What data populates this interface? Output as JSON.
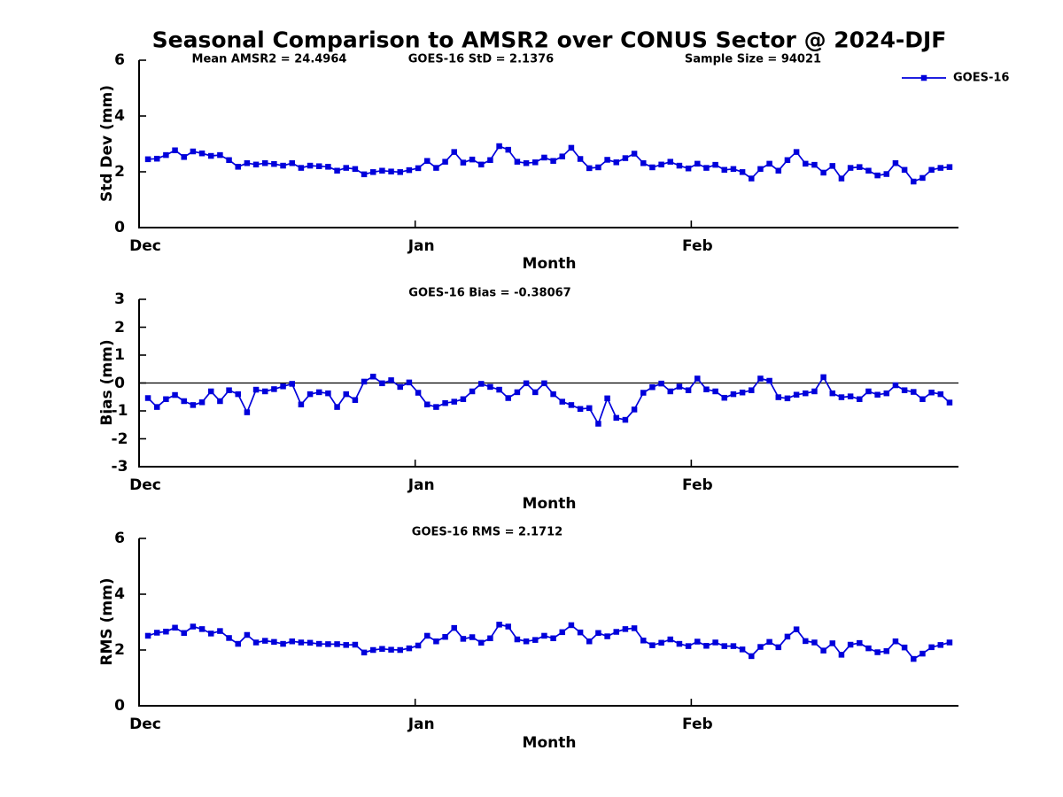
{
  "title": "Seasonal Comparison to AMSR2 over CONUS Sector @ 2024-DJF",
  "annotations": {
    "mean_amsr2": "Mean AMSR2 = 24.4964",
    "std": "GOES-16 StD = 2.1376",
    "sample_size": "Sample Size = 94021",
    "bias": "GOES-16 Bias = -0.38067",
    "rms": "GOES-16 RMS = 2.1712"
  },
  "legend": {
    "label": "GOES-16",
    "position": "top-right-outside"
  },
  "colors": {
    "series": "#0000DB",
    "axis": "#000000",
    "text": "#000000"
  },
  "chart_data": [
    {
      "type": "line",
      "panel": "std-dev",
      "ylabel": "Std Dev (mm)",
      "xlabel": "Month",
      "ylim": [
        0,
        6
      ],
      "yticks": [
        0,
        2,
        4,
        6
      ],
      "xlim": [
        0,
        92
      ],
      "xticks": [
        {
          "label": "Dec",
          "day": 0
        },
        {
          "label": "Jan",
          "day": 31
        },
        {
          "label": "Feb",
          "day": 62
        }
      ],
      "x_first": 1,
      "x_last": 91,
      "grid": false,
      "zero_line": false,
      "series": [
        {
          "name": "GOES-16",
          "marker": "square",
          "values": [
            2.45,
            2.47,
            2.6,
            2.77,
            2.53,
            2.73,
            2.66,
            2.57,
            2.6,
            2.42,
            2.18,
            2.31,
            2.26,
            2.31,
            2.28,
            2.22,
            2.31,
            2.14,
            2.22,
            2.2,
            2.18,
            2.04,
            2.14,
            2.1,
            1.91,
            1.99,
            2.04,
            2.01,
            1.99,
            2.06,
            2.13,
            2.39,
            2.14,
            2.36,
            2.71,
            2.33,
            2.44,
            2.26,
            2.42,
            2.92,
            2.79,
            2.36,
            2.31,
            2.34,
            2.51,
            2.39,
            2.55,
            2.86,
            2.46,
            2.13,
            2.16,
            2.43,
            2.34,
            2.49,
            2.65,
            2.31,
            2.16,
            2.26,
            2.36,
            2.22,
            2.12,
            2.29,
            2.14,
            2.25,
            2.07,
            2.1,
            1.99,
            1.76,
            2.1,
            2.29,
            2.04,
            2.42,
            2.71,
            2.29,
            2.25,
            1.97,
            2.21,
            1.76,
            2.14,
            2.17,
            2.04,
            1.87,
            1.92,
            2.31,
            2.07,
            1.65,
            1.78,
            2.07,
            2.14,
            2.17
          ]
        }
      ]
    },
    {
      "type": "line",
      "panel": "bias",
      "ylabel": "Bias (mm)",
      "xlabel": "Month",
      "ylim": [
        -3,
        3
      ],
      "yticks": [
        -3,
        -2,
        -1,
        0,
        1,
        2,
        3
      ],
      "xlim": [
        0,
        92
      ],
      "xticks": [
        {
          "label": "Dec",
          "day": 0
        },
        {
          "label": "Jan",
          "day": 31
        },
        {
          "label": "Feb",
          "day": 62
        }
      ],
      "x_first": 1,
      "x_last": 91,
      "grid": false,
      "zero_line": true,
      "series": [
        {
          "name": "GOES-16",
          "marker": "square",
          "values": [
            -0.54,
            -0.86,
            -0.58,
            -0.43,
            -0.65,
            -0.79,
            -0.69,
            -0.3,
            -0.65,
            -0.26,
            -0.4,
            -1.05,
            -0.24,
            -0.3,
            -0.22,
            -0.12,
            -0.03,
            -0.77,
            -0.4,
            -0.33,
            -0.37,
            -0.86,
            -0.4,
            -0.61,
            0.05,
            0.23,
            -0.01,
            0.1,
            -0.14,
            0.02,
            -0.35,
            -0.77,
            -0.86,
            -0.72,
            -0.67,
            -0.58,
            -0.3,
            -0.03,
            -0.14,
            -0.24,
            -0.54,
            -0.33,
            -0.01,
            -0.33,
            -0.01,
            -0.4,
            -0.67,
            -0.79,
            -0.93,
            -0.9,
            -1.46,
            -0.55,
            -1.25,
            -1.32,
            -0.95,
            -0.35,
            -0.15,
            -0.02,
            -0.3,
            -0.13,
            -0.26,
            0.16,
            -0.23,
            -0.3,
            -0.53,
            -0.4,
            -0.34,
            -0.26,
            0.16,
            0.08,
            -0.51,
            -0.55,
            -0.42,
            -0.37,
            -0.3,
            0.21,
            -0.37,
            -0.51,
            -0.48,
            -0.58,
            -0.3,
            -0.42,
            -0.37,
            -0.08,
            -0.26,
            -0.32,
            -0.58,
            -0.34,
            -0.4,
            -0.7
          ]
        }
      ]
    },
    {
      "type": "line",
      "panel": "rms",
      "ylabel": "RMS (mm)",
      "xlabel": "Month",
      "ylim": [
        0,
        6
      ],
      "yticks": [
        0,
        2,
        4,
        6
      ],
      "xlim": [
        0,
        92
      ],
      "xticks": [
        {
          "label": "Dec",
          "day": 0
        },
        {
          "label": "Jan",
          "day": 31
        },
        {
          "label": "Feb",
          "day": 62
        }
      ],
      "x_first": 1,
      "x_last": 91,
      "grid": false,
      "zero_line": false,
      "series": [
        {
          "name": "GOES-16",
          "marker": "square",
          "values": [
            2.51,
            2.62,
            2.66,
            2.8,
            2.61,
            2.84,
            2.75,
            2.59,
            2.68,
            2.43,
            2.22,
            2.54,
            2.27,
            2.33,
            2.29,
            2.22,
            2.31,
            2.27,
            2.26,
            2.22,
            2.21,
            2.21,
            2.18,
            2.19,
            1.91,
            2.0,
            2.04,
            2.01,
            2.0,
            2.06,
            2.16,
            2.51,
            2.31,
            2.47,
            2.79,
            2.4,
            2.46,
            2.26,
            2.42,
            2.91,
            2.84,
            2.38,
            2.31,
            2.36,
            2.51,
            2.42,
            2.64,
            2.89,
            2.63,
            2.31,
            2.61,
            2.49,
            2.65,
            2.75,
            2.78,
            2.34,
            2.17,
            2.26,
            2.38,
            2.22,
            2.14,
            2.3,
            2.15,
            2.27,
            2.14,
            2.14,
            2.02,
            1.78,
            2.11,
            2.29,
            2.1,
            2.48,
            2.74,
            2.32,
            2.27,
            1.98,
            2.24,
            1.83,
            2.19,
            2.25,
            2.06,
            1.92,
            1.96,
            2.31,
            2.09,
            1.68,
            1.87,
            2.1,
            2.18,
            2.27
          ]
        }
      ]
    }
  ]
}
